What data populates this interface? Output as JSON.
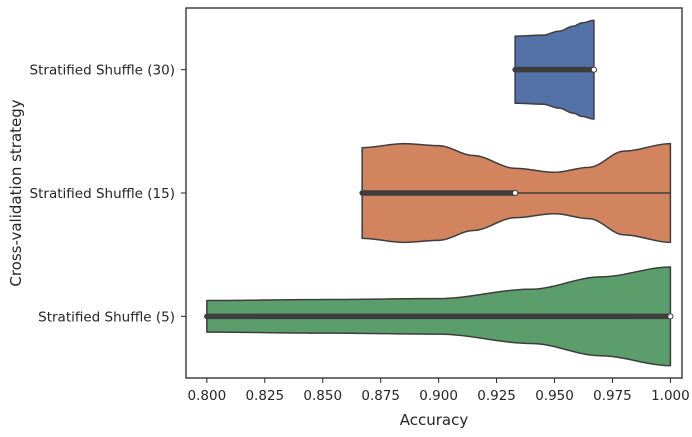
{
  "chart_data": {
    "type": "violin",
    "orientation": "horizontal",
    "title": "",
    "xlabel": "Accuracy",
    "ylabel": "Cross-validation strategy",
    "xlim": [
      0.791,
      1.005
    ],
    "x_ticks": [
      "0.800",
      "0.825",
      "0.850",
      "0.875",
      "0.900",
      "0.925",
      "0.950",
      "0.975",
      "1.000"
    ],
    "grid": false,
    "legend": "none",
    "categories": [
      "Stratified Shuffle (30)",
      "Stratified Shuffle (15)",
      "Stratified Shuffle (5)"
    ],
    "series": [
      {
        "category": "Stratified Shuffle (30)",
        "color": "#5471a8",
        "min": 0.933,
        "max": 0.967,
        "q1": 0.933,
        "median": 0.967,
        "q3": 0.967,
        "density": [
          [
            0.933,
            0.68
          ],
          [
            0.945,
            0.7
          ],
          [
            0.952,
            0.78
          ],
          [
            0.958,
            0.88
          ],
          [
            0.962,
            0.95
          ],
          [
            0.967,
            1.0
          ]
        ]
      },
      {
        "category": "Stratified Shuffle (15)",
        "color": "#d1845e",
        "min": 0.867,
        "max": 1.0,
        "q1": 0.867,
        "median": 0.933,
        "q3": 0.933,
        "density": [
          [
            0.867,
            0.92
          ],
          [
            0.885,
            1.0
          ],
          [
            0.9,
            0.96
          ],
          [
            0.915,
            0.76
          ],
          [
            0.933,
            0.5
          ],
          [
            0.95,
            0.42
          ],
          [
            0.965,
            0.52
          ],
          [
            0.98,
            0.85
          ],
          [
            1.0,
            1.0
          ]
        ]
      },
      {
        "category": "Stratified Shuffle (5)",
        "color": "#5b9e6c",
        "min": 0.8,
        "max": 1.0,
        "q1": 0.8,
        "median": 1.0,
        "q3": 1.0,
        "density": [
          [
            0.8,
            0.32
          ],
          [
            0.85,
            0.34
          ],
          [
            0.9,
            0.36
          ],
          [
            0.94,
            0.55
          ],
          [
            0.97,
            0.8
          ],
          [
            1.0,
            1.0
          ]
        ]
      }
    ]
  }
}
